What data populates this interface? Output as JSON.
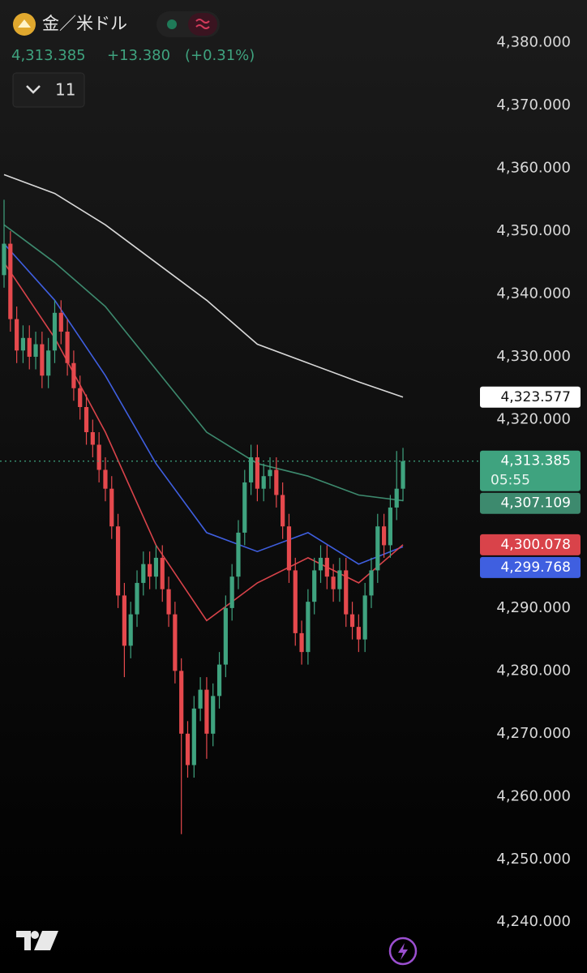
{
  "chart_data": {
    "type": "candlestick",
    "title": "金／米ドル",
    "header": {
      "price": "4,313.385",
      "change": "+13.380",
      "change_pct": "(+0.31%)",
      "interval": "11"
    },
    "countdown": "05:55",
    "up_color": "#3fa37f",
    "down_color": "#e5494d",
    "ylim": [
      4231.9,
      4386.8
    ],
    "yticks": [
      {
        "value": 4380,
        "label": "4,380.000"
      },
      {
        "value": 4370,
        "label": "4,370.000"
      },
      {
        "value": 4360,
        "label": "4,360.000"
      },
      {
        "value": 4350,
        "label": "4,350.000"
      },
      {
        "value": 4340,
        "label": "4,340.000"
      },
      {
        "value": 4330,
        "label": "4,330.000"
      },
      {
        "value": 4320,
        "label": "4,320.000"
      },
      {
        "value": 4290,
        "label": "4,290.000"
      },
      {
        "value": 4280,
        "label": "4,280.000"
      },
      {
        "value": 4270,
        "label": "4,270.000"
      },
      {
        "value": 4260,
        "label": "4,260.000"
      },
      {
        "value": 4250,
        "label": "4,250.000"
      },
      {
        "value": 4240,
        "label": "4,240.000"
      }
    ],
    "candles": {
      "open": [
        4343,
        4348,
        4336,
        4331,
        4333,
        4330,
        4332,
        4327,
        4331,
        4337,
        4334,
        4329,
        4325,
        4322,
        4318,
        4316,
        4312,
        4309,
        4303,
        4292,
        4284,
        4289,
        4294,
        4297,
        4295,
        4298,
        4293,
        4289,
        4280,
        4270,
        4265,
        4274,
        4277,
        4270,
        4276,
        4281,
        4290,
        4295,
        4302,
        4310,
        4314,
        4309,
        4311,
        4312,
        4308,
        4303,
        4296,
        4286,
        4283,
        4291,
        4296,
        4298,
        4295,
        4293,
        4296,
        4289,
        4287,
        4285,
        4292,
        4296,
        4303,
        4300,
        4306,
        4309
      ],
      "high": [
        4355,
        4350,
        4338,
        4335,
        4335,
        4334,
        4334,
        4333,
        4339,
        4339,
        4336,
        4331,
        4327,
        4324,
        4320,
        4318,
        4314,
        4311,
        4305,
        4294,
        4291,
        4296,
        4299,
        4299,
        4300,
        4300,
        4295,
        4291,
        4282,
        4272,
        4276,
        4279,
        4279,
        4278,
        4283,
        4292,
        4297,
        4304,
        4312,
        4316,
        4316,
        4313,
        4314,
        4314,
        4310,
        4305,
        4298,
        4288,
        4293,
        4298,
        4300,
        4300,
        4297,
        4298,
        4298,
        4291,
        4289,
        4294,
        4298,
        4305,
        4305,
        4308,
        4315,
        4315.5
      ],
      "low": [
        4341,
        4334,
        4329,
        4329,
        4328,
        4328,
        4325,
        4325,
        4329,
        4332,
        4327,
        4323,
        4320,
        4316,
        4314,
        4310,
        4307,
        4301,
        4290,
        4279,
        4282,
        4287,
        4292,
        4293,
        4293,
        4291,
        4287,
        4278,
        4254,
        4263,
        4263,
        4272,
        4266,
        4268,
        4274,
        4279,
        4288,
        4293,
        4300,
        4308,
        4307,
        4307,
        4309,
        4306,
        4301,
        4294,
        4284,
        4281,
        4281,
        4289,
        4294,
        4293,
        4291,
        4291,
        4287,
        4285,
        4283,
        4283,
        4290,
        4294,
        4298,
        4298,
        4304,
        4307
      ],
      "close": [
        4348,
        4336,
        4331,
        4333,
        4330,
        4332,
        4327,
        4331,
        4337,
        4334,
        4329,
        4325,
        4322,
        4318,
        4316,
        4312,
        4309,
        4303,
        4292,
        4284,
        4289,
        4294,
        4297,
        4295,
        4298,
        4293,
        4289,
        4280,
        4270,
        4265,
        4274,
        4277,
        4270,
        4276,
        4281,
        4290,
        4295,
        4302,
        4310,
        4314,
        4309,
        4311,
        4312,
        4308,
        4303,
        4296,
        4286,
        4283,
        4291,
        4296,
        4298,
        4295,
        4293,
        4296,
        4289,
        4287,
        4285,
        4292,
        4296,
        4303,
        4300,
        4306,
        4309,
        4313.385
      ],
      "value_labels": [
        null,
        null,
        null,
        null,
        null,
        null,
        null,
        null,
        null,
        null,
        null,
        null,
        null,
        null,
        null,
        null,
        null,
        null,
        null,
        null,
        null,
        null,
        null,
        null,
        null,
        null,
        null,
        null,
        null,
        null,
        null,
        null,
        null,
        null,
        null,
        null,
        null,
        null,
        null,
        null,
        null,
        null,
        null,
        null,
        null,
        null,
        null,
        null,
        null,
        null,
        null,
        null,
        null,
        null,
        null,
        null,
        null,
        null,
        null,
        null,
        null,
        null,
        null,
        "4,313.385"
      ]
    },
    "series": [
      {
        "color": "#d9d9d9",
        "x": [
          0,
          8,
          16,
          24,
          32,
          40,
          48,
          56,
          63
        ],
        "values": [
          4359,
          4356,
          4351,
          4345,
          4339,
          4332,
          4329,
          4326,
          4323.577
        ],
        "value_labels": [
          null,
          null,
          null,
          null,
          null,
          null,
          null,
          null,
          "4,323.577"
        ]
      },
      {
        "color": "#3d8a6e",
        "x": [
          0,
          8,
          16,
          24,
          32,
          40,
          48,
          56,
          63
        ],
        "values": [
          4351,
          4345,
          4338,
          4328,
          4318,
          4313,
          4311,
          4308,
          4307.109
        ],
        "value_labels": [
          null,
          null,
          null,
          null,
          null,
          null,
          null,
          null,
          "4,307.109"
        ]
      },
      {
        "color": "#3f5fe0",
        "x": [
          0,
          8,
          16,
          24,
          32,
          40,
          48,
          56,
          63
        ],
        "values": [
          4348,
          4339,
          4327,
          4313,
          4302,
          4299,
          4302,
          4297,
          4299.768
        ],
        "value_labels": [
          null,
          null,
          null,
          null,
          null,
          null,
          null,
          null,
          "4,299.768"
        ]
      },
      {
        "color": "#d9434a",
        "x": [
          0,
          8,
          16,
          24,
          32,
          40,
          48,
          56,
          63
        ],
        "values": [
          4345,
          4333,
          4318,
          4300,
          4288,
          4294,
          4298,
          4294,
          4300.078
        ],
        "value_labels": [
          null,
          null,
          null,
          null,
          null,
          null,
          null,
          null,
          "4,300.078"
        ]
      }
    ]
  }
}
